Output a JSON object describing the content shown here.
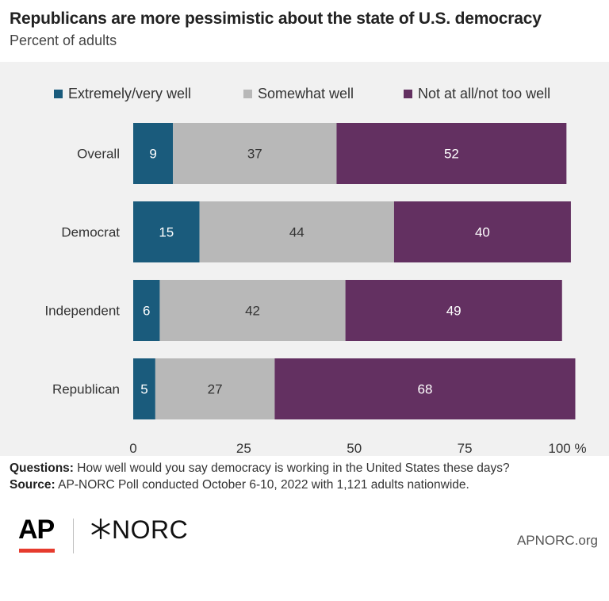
{
  "header": {
    "title": "Republicans are more pessimistic about the state of U.S. democracy",
    "subtitle": "Percent of adults"
  },
  "colors": {
    "extremely": "#1a5b7c",
    "somewhat": "#b8b8b8",
    "notatall": "#633061",
    "panel": "#f1f1f1"
  },
  "chart_data": {
    "type": "bar",
    "orientation": "horizontal",
    "stacked": true,
    "categories": [
      "Overall",
      "Democrat",
      "Independent",
      "Republican"
    ],
    "series": [
      {
        "name": "Extremely/very well",
        "values": [
          9,
          15,
          6,
          5
        ]
      },
      {
        "name": "Somewhat well",
        "values": [
          37,
          44,
          42,
          27
        ]
      },
      {
        "name": "Not at all/not too well",
        "values": [
          52,
          40,
          49,
          68
        ]
      }
    ],
    "xlim": [
      0,
      100
    ],
    "xticks": [
      "0",
      "25",
      "50",
      "75",
      "100 %"
    ],
    "xtick_values": [
      0,
      25,
      50,
      75,
      100
    ],
    "legend_position": "top",
    "grid": false
  },
  "notes": {
    "questions_label": "Questions:",
    "questions_text": "How well would you say democracy is working in the United States these days?",
    "source_label": "Source:",
    "source_text": "AP-NORC Poll conducted October 6-10, 2022 with 1,121 adults nationwide."
  },
  "footer": {
    "ap_logo": "AP",
    "norc_logo": "NORC",
    "site": "APNORC.org"
  }
}
